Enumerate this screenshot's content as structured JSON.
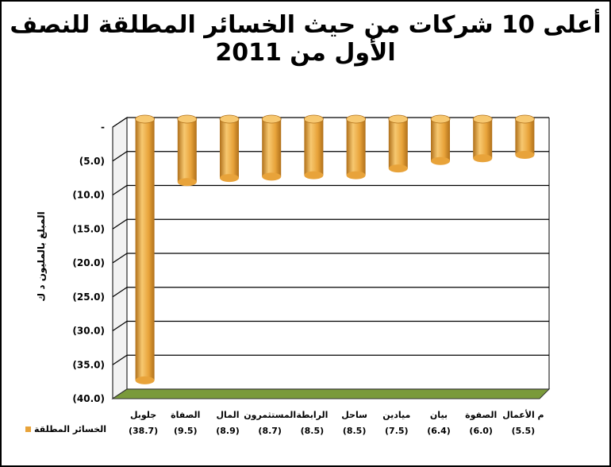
{
  "chart_data": {
    "type": "bar",
    "title": "أعلى 10 شركات من حيث الخسائر المطلقة للنصف الأول من 2011",
    "ylabel": "المبلغ بالمليون د ك",
    "ylim": [
      -40,
      0
    ],
    "y_ticks": [
      "-",
      "(5.0)",
      "(10.0)",
      "(15.0)",
      "(20.0)",
      "(25.0)",
      "(30.0)",
      "(35.0)",
      "(40.0)"
    ],
    "categories": [
      "جلوبل",
      "الصفاة",
      "المال",
      "المستثمرون",
      "الرابطة",
      "ساحل",
      "ميادين",
      "بيان",
      "الصفوة",
      "م الأعمال"
    ],
    "value_labels": [
      "(38.7)",
      "(9.5)",
      "(8.9)",
      "(8.7)",
      "(8.5)",
      "(8.5)",
      "(7.5)",
      "(6.4)",
      "(6.0)",
      "(5.5)"
    ],
    "series": [
      {
        "name": "الخسائر المطلقة",
        "values": [
          -38.7,
          -9.5,
          -8.9,
          -8.7,
          -8.5,
          -8.5,
          -7.5,
          -6.4,
          -6.0,
          -5.5
        ]
      }
    ],
    "legend": "bottom-left",
    "grid": true,
    "colors": {
      "bar": "#e8a33a",
      "bar_dark": "#b0701a",
      "bar_light": "#f7c870",
      "floor": "#7a9a3a"
    }
  }
}
